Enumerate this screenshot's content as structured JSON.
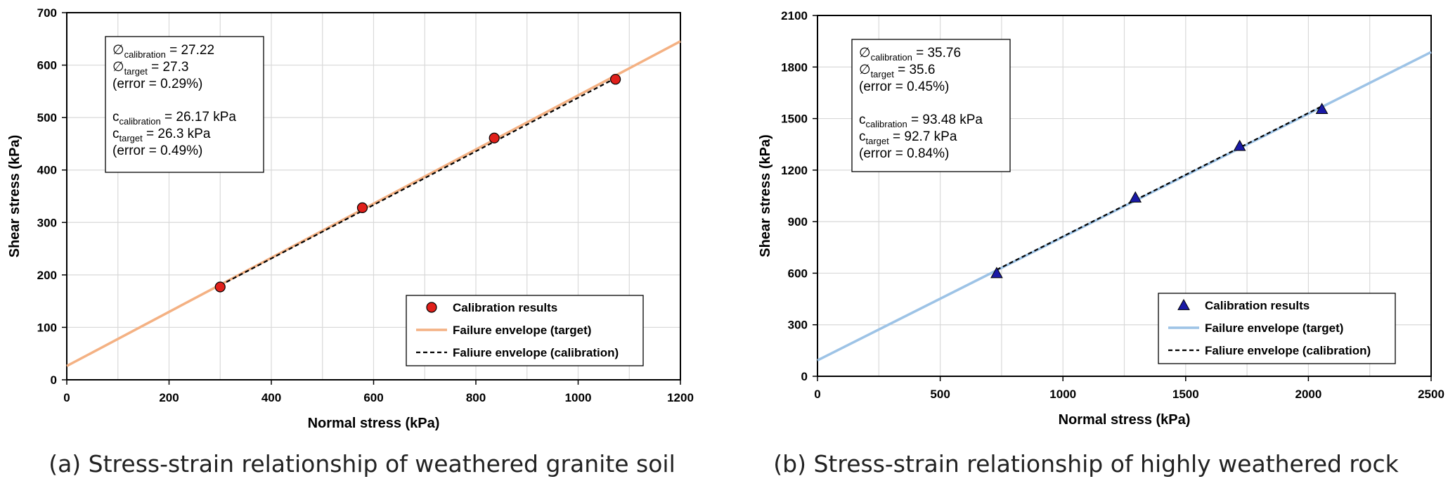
{
  "chart_data": [
    {
      "id": "a",
      "type": "scatter",
      "caption": "(a) Stress-strain relationship of weathered granite soil",
      "xlabel": "Normal stress (kPa)",
      "ylabel": "Shear stress (kPa)",
      "xlim": [
        0,
        1200
      ],
      "ylim": [
        0,
        700
      ],
      "xticks": [
        0,
        200,
        400,
        600,
        800,
        1000,
        1200
      ],
      "yticks": [
        0,
        100,
        200,
        300,
        400,
        500,
        600,
        700
      ],
      "x_grid_step": 100,
      "marker": "circle",
      "colors": {
        "marker": "#e0201b",
        "target_line": "#f4b183",
        "calibration_line": "#000000"
      },
      "series": [
        {
          "name": "Calibration results",
          "kind": "points",
          "x": [
            300,
            578,
            836,
            1073
          ],
          "y": [
            177,
            328,
            461,
            573
          ]
        },
        {
          "name": "Failure envelope (target)",
          "kind": "line",
          "x": [
            0,
            1200
          ],
          "y": [
            26.3,
            645.5
          ]
        },
        {
          "name": "Faliure envelope (calibration)",
          "kind": "dashed-line",
          "x": [
            300,
            1073
          ],
          "y": [
            180.1,
            575.1
          ]
        }
      ],
      "annotation": {
        "phi_cal": {
          "sym": "∅",
          "sub": "calibration",
          "text": " = 27.22"
        },
        "phi_target": {
          "sym": "∅",
          "sub": "target",
          "text": " = 27.3"
        },
        "phi_error": "(error = 0.29%)",
        "c_cal": {
          "sym": "c",
          "sub": "calibration",
          "text": " = 26.17 kPa"
        },
        "c_target": {
          "sym": "c",
          "sub": "target",
          "text": " = 26.3 kPa"
        },
        "c_error": "(error = 0.49%)"
      },
      "legend": {
        "position": "bottom-right",
        "items": [
          "Calibration results",
          "Failure envelope (target)",
          "Faliure envelope (calibration)"
        ]
      }
    },
    {
      "id": "b",
      "type": "scatter",
      "caption": "(b) Stress-strain relationship of highly weathered rock",
      "xlabel": "Normal stress (kPa)",
      "ylabel": "Shear stress (kPa)",
      "xlim": [
        0,
        2500
      ],
      "ylim": [
        0,
        2100
      ],
      "xticks": [
        0,
        500,
        1000,
        1500,
        2000,
        2500
      ],
      "yticks": [
        0,
        300,
        600,
        900,
        1200,
        1500,
        1800,
        2100
      ],
      "x_grid_step": 250,
      "marker": "triangle",
      "colors": {
        "marker": "#1a1aa6",
        "target_line": "#9dc3e6",
        "calibration_line": "#000000"
      },
      "series": [
        {
          "name": "Calibration results",
          "kind": "points",
          "x": [
            730,
            1295,
            1720,
            2055
          ],
          "y": [
            600,
            1040,
            1340,
            1555
          ]
        },
        {
          "name": "Failure envelope (target)",
          "kind": "line",
          "x": [
            0,
            2500
          ],
          "y": [
            92.7,
            1887
          ]
        },
        {
          "name": "Faliure envelope (calibration)",
          "kind": "dashed-line",
          "x": [
            730,
            2055
          ],
          "y": [
            619.8,
            1572
          ]
        }
      ],
      "annotation": {
        "phi_cal": {
          "sym": "∅",
          "sub": "calibration",
          "text": " = 35.76"
        },
        "phi_target": {
          "sym": "∅",
          "sub": "target",
          "text": " = 35.6"
        },
        "phi_error": "(error = 0.45%)",
        "c_cal": {
          "sym": "c",
          "sub": "calibration",
          "text": " = 93.48 kPa"
        },
        "c_target": {
          "sym": "c",
          "sub": "target",
          "text": " = 92.7 kPa"
        },
        "c_error": "(error = 0.84%)"
      },
      "legend": {
        "position": "bottom-right",
        "items": [
          "Calibration results",
          "Failure envelope (target)",
          "Faliure envelope (calibration)"
        ]
      }
    }
  ]
}
